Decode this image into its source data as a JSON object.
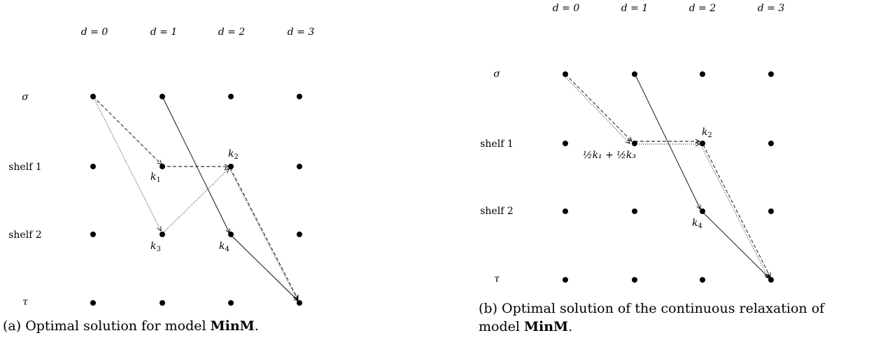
{
  "panel_a": {
    "columns": [
      "d = 0",
      "d = 1",
      "d = 2",
      "d = 3"
    ],
    "rows": [
      "σ",
      "shelf 1",
      "shelf 2",
      "τ"
    ],
    "node_labels": {
      "k1": {
        "base": "k",
        "sub": "1"
      },
      "k3": {
        "base": "k",
        "sub": "3"
      },
      "k2": {
        "base": "k",
        "sub": "2"
      },
      "k4": {
        "base": "k",
        "sub": "4"
      }
    },
    "caption": {
      "prefix": "(a) Optimal solution for model ",
      "bold": "MinM",
      "suffix": "."
    }
  },
  "panel_b": {
    "columns": [
      "d = 0",
      "d = 1",
      "d = 2",
      "d = 3"
    ],
    "rows": [
      "σ",
      "shelf 1",
      "shelf 2",
      "τ"
    ],
    "node_labels": {
      "k2": {
        "base": "k",
        "sub": "2"
      },
      "k4": {
        "base": "k",
        "sub": "4"
      },
      "frac": "½k₁ + ½k₃"
    },
    "caption": {
      "line1": "(b) Optimal solution of the continuous relaxation of",
      "line2_prefix": "model ",
      "line2_bold": "MinM",
      "line2_suffix": "."
    }
  }
}
